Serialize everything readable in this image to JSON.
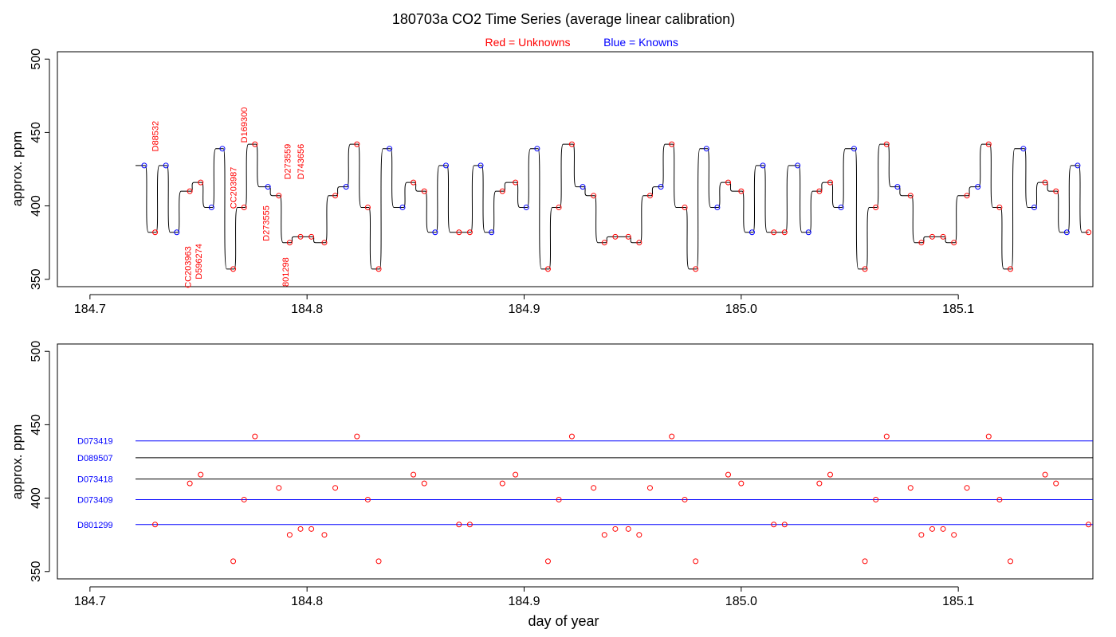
{
  "chart_data": {
    "type": "scatter",
    "title": "180703a   CO2 Time Series (average linear calibration)",
    "legend": {
      "red_label": "Red = Unknowns",
      "blue_label": "Blue = Knowns",
      "red_color": "#ff0000",
      "blue_color": "#0000ff",
      "placement": "top-center"
    },
    "xlabel": "day of year",
    "ylabel": "approx. ppm",
    "xlim": [
      184.685,
      185.162
    ],
    "ylim": [
      345,
      505
    ],
    "x_ticks": [
      184.7,
      184.8,
      184.9,
      185.0,
      185.1
    ],
    "x_tick_labels": [
      "184.7",
      "184.8",
      "184.9",
      "185.0",
      "185.1"
    ],
    "y_ticks": [
      350,
      400,
      450,
      500
    ],
    "y_tick_labels": [
      "350",
      "400",
      "450",
      "500"
    ],
    "start_x": 184.721,
    "points": [
      {
        "x": 184.725,
        "y": 427.5,
        "k": 1
      },
      {
        "x": 184.73,
        "y": 382,
        "k": 0
      },
      {
        "x": 184.735,
        "y": 427.5,
        "k": 1
      },
      {
        "x": 184.74,
        "y": 382,
        "k": 1
      },
      {
        "x": 184.746,
        "y": 410,
        "k": 0
      },
      {
        "x": 184.751,
        "y": 416,
        "k": 0
      },
      {
        "x": 184.756,
        "y": 399,
        "k": 1
      },
      {
        "x": 184.761,
        "y": 439,
        "k": 1
      },
      {
        "x": 184.766,
        "y": 357,
        "k": 0
      },
      {
        "x": 184.771,
        "y": 399,
        "k": 0
      },
      {
        "x": 184.776,
        "y": 442,
        "k": 0
      },
      {
        "x": 184.782,
        "y": 413,
        "k": 1
      },
      {
        "x": 184.787,
        "y": 407,
        "k": 0
      },
      {
        "x": 184.792,
        "y": 375,
        "k": 0
      },
      {
        "x": 184.797,
        "y": 379,
        "k": 0
      },
      {
        "x": 184.802,
        "y": 379,
        "k": 0
      },
      {
        "x": 184.808,
        "y": 375,
        "k": 0
      },
      {
        "x": 184.813,
        "y": 407,
        "k": 0
      },
      {
        "x": 184.818,
        "y": 413,
        "k": 1
      },
      {
        "x": 184.823,
        "y": 442,
        "k": 0
      },
      {
        "x": 184.828,
        "y": 399,
        "k": 0
      },
      {
        "x": 184.833,
        "y": 357,
        "k": 0
      },
      {
        "x": 184.838,
        "y": 439,
        "k": 1
      },
      {
        "x": 184.844,
        "y": 399,
        "k": 1
      },
      {
        "x": 184.849,
        "y": 416,
        "k": 0
      },
      {
        "x": 184.854,
        "y": 410,
        "k": 0
      },
      {
        "x": 184.859,
        "y": 382,
        "k": 1
      },
      {
        "x": 184.864,
        "y": 427.5,
        "k": 1
      },
      {
        "x": 184.87,
        "y": 382,
        "k": 0
      },
      {
        "x": 184.875,
        "y": 382,
        "k": 0
      },
      {
        "x": 184.88,
        "y": 427.5,
        "k": 1
      },
      {
        "x": 184.885,
        "y": 382,
        "k": 1
      },
      {
        "x": 184.89,
        "y": 410,
        "k": 0
      },
      {
        "x": 184.896,
        "y": 416,
        "k": 0
      },
      {
        "x": 184.901,
        "y": 399,
        "k": 1
      },
      {
        "x": 184.906,
        "y": 439,
        "k": 1
      },
      {
        "x": 184.911,
        "y": 357,
        "k": 0
      },
      {
        "x": 184.916,
        "y": 399,
        "k": 0
      },
      {
        "x": 184.922,
        "y": 442,
        "k": 0
      },
      {
        "x": 184.927,
        "y": 413,
        "k": 1
      },
      {
        "x": 184.932,
        "y": 407,
        "k": 0
      },
      {
        "x": 184.937,
        "y": 375,
        "k": 0
      },
      {
        "x": 184.942,
        "y": 379,
        "k": 0
      },
      {
        "x": 184.948,
        "y": 379,
        "k": 0
      },
      {
        "x": 184.953,
        "y": 375,
        "k": 0
      },
      {
        "x": 184.958,
        "y": 407,
        "k": 0
      },
      {
        "x": 184.963,
        "y": 413,
        "k": 1
      },
      {
        "x": 184.968,
        "y": 442,
        "k": 0
      },
      {
        "x": 184.974,
        "y": 399,
        "k": 0
      },
      {
        "x": 184.979,
        "y": 357,
        "k": 0
      },
      {
        "x": 184.984,
        "y": 439,
        "k": 1
      },
      {
        "x": 184.989,
        "y": 399,
        "k": 1
      },
      {
        "x": 184.994,
        "y": 416,
        "k": 0
      },
      {
        "x": 185.0,
        "y": 410,
        "k": 0
      },
      {
        "x": 185.005,
        "y": 382,
        "k": 1
      },
      {
        "x": 185.01,
        "y": 427.5,
        "k": 1
      },
      {
        "x": 185.015,
        "y": 382,
        "k": 0
      },
      {
        "x": 185.02,
        "y": 382,
        "k": 0
      },
      {
        "x": 185.026,
        "y": 427.5,
        "k": 1
      },
      {
        "x": 185.031,
        "y": 382,
        "k": 1
      },
      {
        "x": 185.036,
        "y": 410,
        "k": 0
      },
      {
        "x": 185.041,
        "y": 416,
        "k": 0
      },
      {
        "x": 185.046,
        "y": 399,
        "k": 1
      },
      {
        "x": 185.052,
        "y": 439,
        "k": 1
      },
      {
        "x": 185.057,
        "y": 357,
        "k": 0
      },
      {
        "x": 185.062,
        "y": 399,
        "k": 0
      },
      {
        "x": 185.067,
        "y": 442,
        "k": 0
      },
      {
        "x": 185.072,
        "y": 413,
        "k": 1
      },
      {
        "x": 185.078,
        "y": 407,
        "k": 0
      },
      {
        "x": 185.083,
        "y": 375,
        "k": 0
      },
      {
        "x": 185.088,
        "y": 379,
        "k": 0
      },
      {
        "x": 185.093,
        "y": 379,
        "k": 0
      },
      {
        "x": 185.098,
        "y": 375,
        "k": 0
      },
      {
        "x": 185.104,
        "y": 407,
        "k": 0
      },
      {
        "x": 185.109,
        "y": 413,
        "k": 1
      },
      {
        "x": 185.114,
        "y": 442,
        "k": 0
      },
      {
        "x": 185.119,
        "y": 399,
        "k": 0
      },
      {
        "x": 185.124,
        "y": 357,
        "k": 0
      },
      {
        "x": 185.13,
        "y": 439,
        "k": 1
      },
      {
        "x": 185.135,
        "y": 399,
        "k": 1
      },
      {
        "x": 185.14,
        "y": 416,
        "k": 0
      },
      {
        "x": 185.145,
        "y": 410,
        "k": 0
      },
      {
        "x": 185.15,
        "y": 382,
        "k": 1
      },
      {
        "x": 185.155,
        "y": 427.5,
        "k": 1
      },
      {
        "x": 185.16,
        "y": 382,
        "k": 0
      }
    ],
    "sample_labels": [
      {
        "text": "D88532",
        "x": 184.73,
        "y": 437
      },
      {
        "text": "CC203963",
        "x": 184.745,
        "y": 344
      },
      {
        "text": "D596274",
        "x": 184.75,
        "y": 350
      },
      {
        "text": "CC203987",
        "x": 184.766,
        "y": 398
      },
      {
        "text": "D169300",
        "x": 184.771,
        "y": 443
      },
      {
        "text": "D273555",
        "x": 184.781,
        "y": 376
      },
      {
        "text": "801298",
        "x": 184.79,
        "y": 345
      },
      {
        "text": "D273559",
        "x": 184.791,
        "y": 418
      },
      {
        "text": "D743656",
        "x": 184.797,
        "y": 418
      }
    ],
    "reference_lines": [
      {
        "label": "D073419",
        "y": 439,
        "color": "#0000ff"
      },
      {
        "label": "D089507",
        "y": 427.5,
        "color": "#000000"
      },
      {
        "label": "D073418",
        "y": 413,
        "color": "#000000"
      },
      {
        "label": "D073409",
        "y": 399,
        "color": "#0000ff"
      },
      {
        "label": "D801299",
        "y": 382,
        "color": "#0000ff"
      }
    ],
    "reference_x_range": [
      184.721,
      185.162
    ]
  }
}
